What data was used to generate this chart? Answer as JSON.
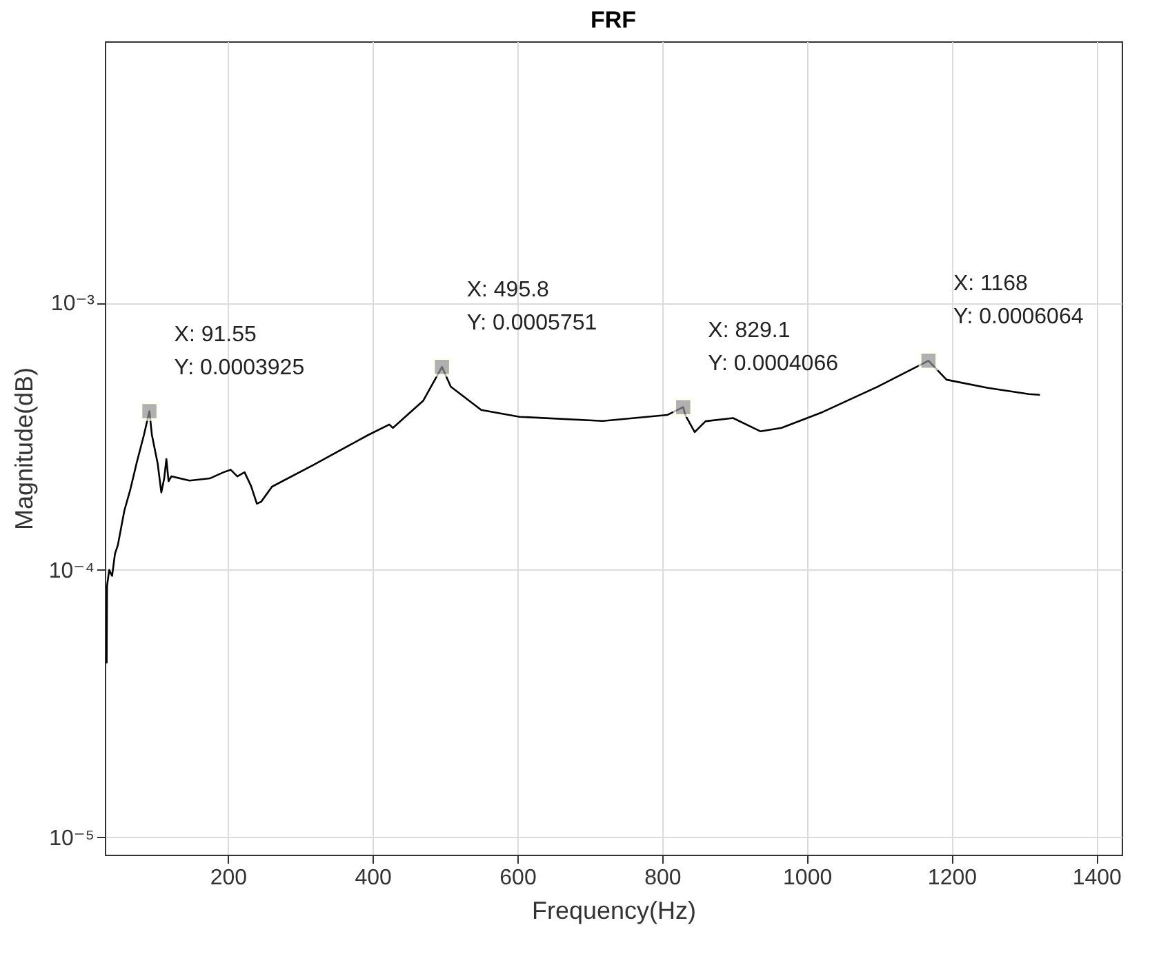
{
  "chart_data": {
    "type": "line",
    "title": "FRF",
    "xlabel": "Frequency(Hz)",
    "ylabel": "Magnitude(dB)",
    "log": "y",
    "grid": true,
    "line_style": "solid",
    "marker": "none",
    "xlim": [
      30,
      1435
    ],
    "xticks": [
      200,
      400,
      600,
      800,
      1000,
      1200,
      1400
    ],
    "ylim": [
      8.6e-06,
      0.0095
    ],
    "yticks": [
      {
        "value": 1e-05,
        "label": "10⁻⁵"
      },
      {
        "value": 0.0001,
        "label": "10⁻⁴"
      },
      {
        "value": 0.001,
        "label": "10⁻³"
      }
    ],
    "series": [
      {
        "color": "#000000",
        "x": [
          32.5,
          33,
          36,
          40,
          44,
          48,
          57,
          65,
          74,
          84,
          91.55,
          95,
          103,
          108,
          112,
          115,
          118,
          122,
          147,
          175,
          194,
          204,
          213,
          223,
          232,
          240,
          246,
          261,
          318,
          394,
          423,
          428,
          470,
          495.8,
          508,
          550,
          603,
          718,
          807,
          829.1,
          832,
          845,
          860,
          898,
          936,
          965,
          1022,
          1098,
          1168,
          1193,
          1250,
          1307,
          1321
        ],
        "values": [
          4.5e-05,
          8.7e-05,
          0.0001,
          9.5e-05,
          0.000115,
          0.000124,
          0.000167,
          0.000199,
          0.000252,
          0.00032,
          0.0003925,
          0.00032,
          0.00025,
          0.000195,
          0.00022,
          0.00026,
          0.000215,
          0.000224,
          0.000216,
          0.00022,
          0.000232,
          0.000237,
          0.000224,
          0.000232,
          0.000206,
          0.000177,
          0.00018,
          0.000205,
          0.000247,
          0.00032,
          0.00035,
          0.00034,
          0.00043,
          0.0005751,
          0.000485,
          0.000397,
          0.000374,
          0.000361,
          0.00038,
          0.0004066,
          0.00038,
          0.000328,
          0.00036,
          0.00037,
          0.00033,
          0.00034,
          0.00039,
          0.000485,
          0.0006064,
          0.000515,
          0.00048,
          0.000455,
          0.000452
        ]
      }
    ],
    "annotations": [
      {
        "text": "X: 91.55\nY: 0.0003925",
        "x": 91.55,
        "y": 0.0003925
      },
      {
        "text": "X: 495.8\nY: 0.0005751",
        "x": 495.8,
        "y": 0.0005751
      },
      {
        "text": "X: 829.1\nY: 0.0004066",
        "x": 829.1,
        "y": 0.0004066
      },
      {
        "text": "X: 1168\nY: 0.0006064",
        "x": 1168,
        "y": 0.0006064
      }
    ]
  }
}
